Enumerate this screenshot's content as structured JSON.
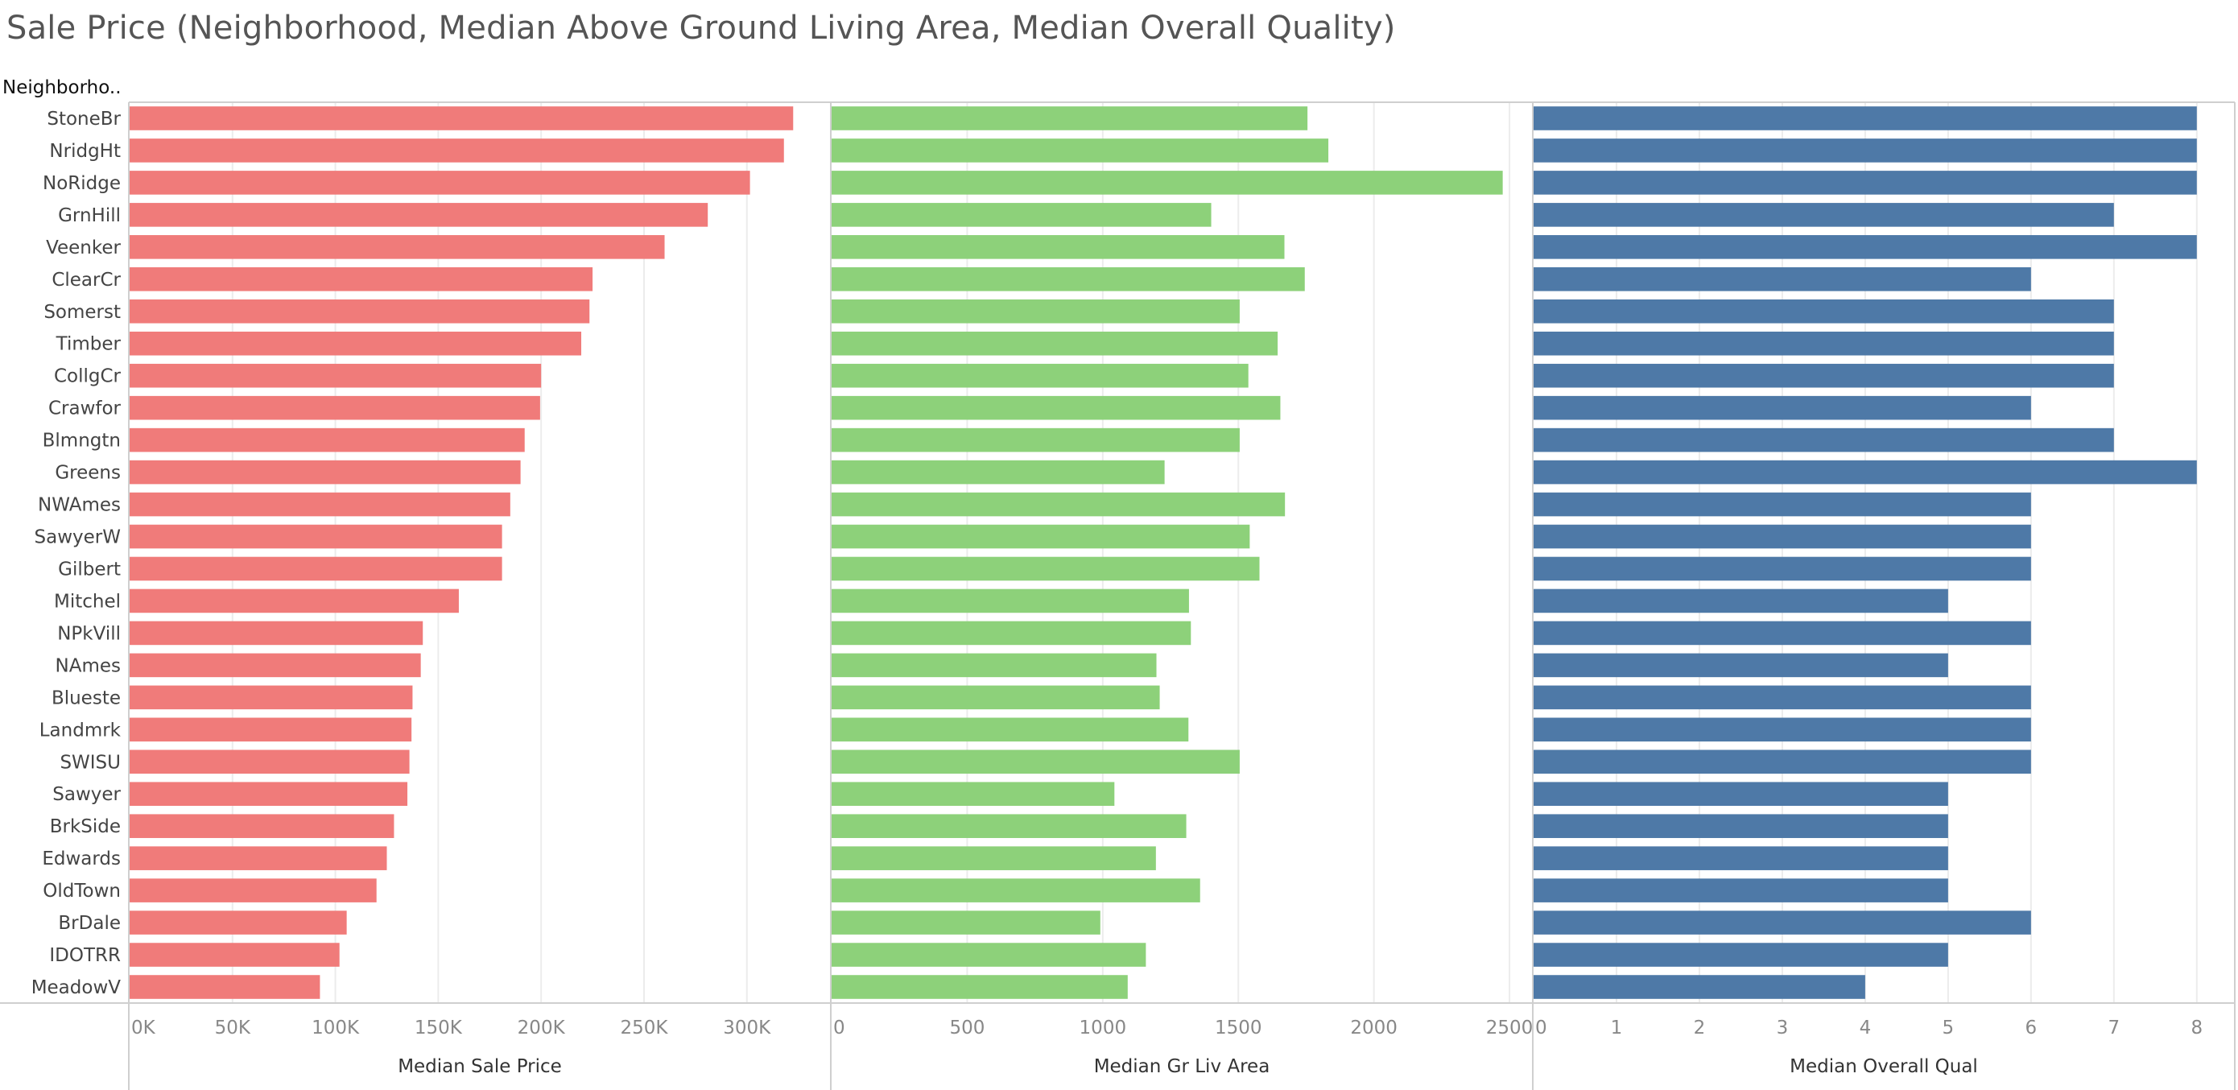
{
  "title": "Sale Price (Neighborhood, Median Above Ground Living Area, Median Overall Quality)",
  "row_header": "Neighborho..",
  "colors": {
    "price": "#f07b7a",
    "area": "#8dd17a",
    "qual": "#4e79a7",
    "gridline": "#ececec",
    "axis": "#cfcfcf"
  },
  "chart_data": [
    {
      "type": "bar",
      "orientation": "horizontal",
      "xlabel": "Median Sale Price",
      "xlim": [
        0,
        340000
      ],
      "ticks": [
        0,
        50000,
        100000,
        150000,
        200000,
        250000,
        300000
      ],
      "tick_labels": [
        "0K",
        "50K",
        "100K",
        "150K",
        "200K",
        "250K",
        "300K"
      ],
      "grid": true,
      "categories": [
        "StoneBr",
        "NridgHt",
        "NoRidge",
        "GrnHill",
        "Veenker",
        "ClearCr",
        "Somerst",
        "Timber",
        "CollgCr",
        "Crawfor",
        "Blmngtn",
        "Greens",
        "NWAmes",
        "SawyerW",
        "Gilbert",
        "Mitchel",
        "NPkVill",
        "NAmes",
        "Blueste",
        "Landmrk",
        "SWISU",
        "Sawyer",
        "BrkSide",
        "Edwards",
        "OldTown",
        "BrDale",
        "IDOTRR",
        "MeadowV"
      ],
      "values": [
        322500,
        318000,
        301500,
        281000,
        260000,
        225000,
        223500,
        219500,
        200000,
        199500,
        192000,
        190000,
        185000,
        181000,
        181000,
        160000,
        142500,
        141500,
        137500,
        137000,
        136000,
        135000,
        128500,
        125000,
        120000,
        105500,
        102000,
        92500
      ]
    },
    {
      "type": "bar",
      "orientation": "horizontal",
      "xlabel": "Median Gr Liv Area",
      "xlim": [
        0,
        2580
      ],
      "ticks": [
        0,
        500,
        1000,
        1500,
        2000,
        2500
      ],
      "tick_labels": [
        "0",
        "500",
        "1000",
        "1500",
        "2000",
        "2500"
      ],
      "grid": true,
      "categories": [
        "StoneBr",
        "NridgHt",
        "NoRidge",
        "GrnHill",
        "Veenker",
        "ClearCr",
        "Somerst",
        "Timber",
        "CollgCr",
        "Crawfor",
        "Blmngtn",
        "Greens",
        "NWAmes",
        "SawyerW",
        "Gilbert",
        "Mitchel",
        "NPkVill",
        "NAmes",
        "Blueste",
        "Landmrk",
        "SWISU",
        "Sawyer",
        "BrkSide",
        "Edwards",
        "OldTown",
        "BrDale",
        "IDOTRR",
        "MeadowV"
      ],
      "values": [
        1755,
        1832,
        2475,
        1400,
        1670,
        1745,
        1505,
        1645,
        1537,
        1655,
        1505,
        1228,
        1672,
        1542,
        1578,
        1318,
        1325,
        1198,
        1210,
        1316,
        1505,
        1043,
        1308,
        1196,
        1359,
        991,
        1159,
        1092
      ]
    },
    {
      "type": "bar",
      "orientation": "horizontal",
      "xlabel": "Median Overall Qual",
      "xlim": [
        0,
        8.4
      ],
      "ticks": [
        0,
        1,
        2,
        3,
        4,
        5,
        6,
        7,
        8
      ],
      "tick_labels": [
        "0",
        "1",
        "2",
        "3",
        "4",
        "5",
        "6",
        "7",
        "8"
      ],
      "grid": true,
      "categories": [
        "StoneBr",
        "NridgHt",
        "NoRidge",
        "GrnHill",
        "Veenker",
        "ClearCr",
        "Somerst",
        "Timber",
        "CollgCr",
        "Crawfor",
        "Blmngtn",
        "Greens",
        "NWAmes",
        "SawyerW",
        "Gilbert",
        "Mitchel",
        "NPkVill",
        "NAmes",
        "Blueste",
        "Landmrk",
        "SWISU",
        "Sawyer",
        "BrkSide",
        "Edwards",
        "OldTown",
        "BrDale",
        "IDOTRR",
        "MeadowV"
      ],
      "values": [
        8,
        8,
        8,
        7,
        8,
        6,
        7,
        7,
        7,
        6,
        7,
        8,
        6,
        6,
        6,
        5,
        6,
        5,
        6,
        6,
        6,
        5,
        5,
        5,
        5,
        6,
        5,
        4
      ]
    }
  ]
}
